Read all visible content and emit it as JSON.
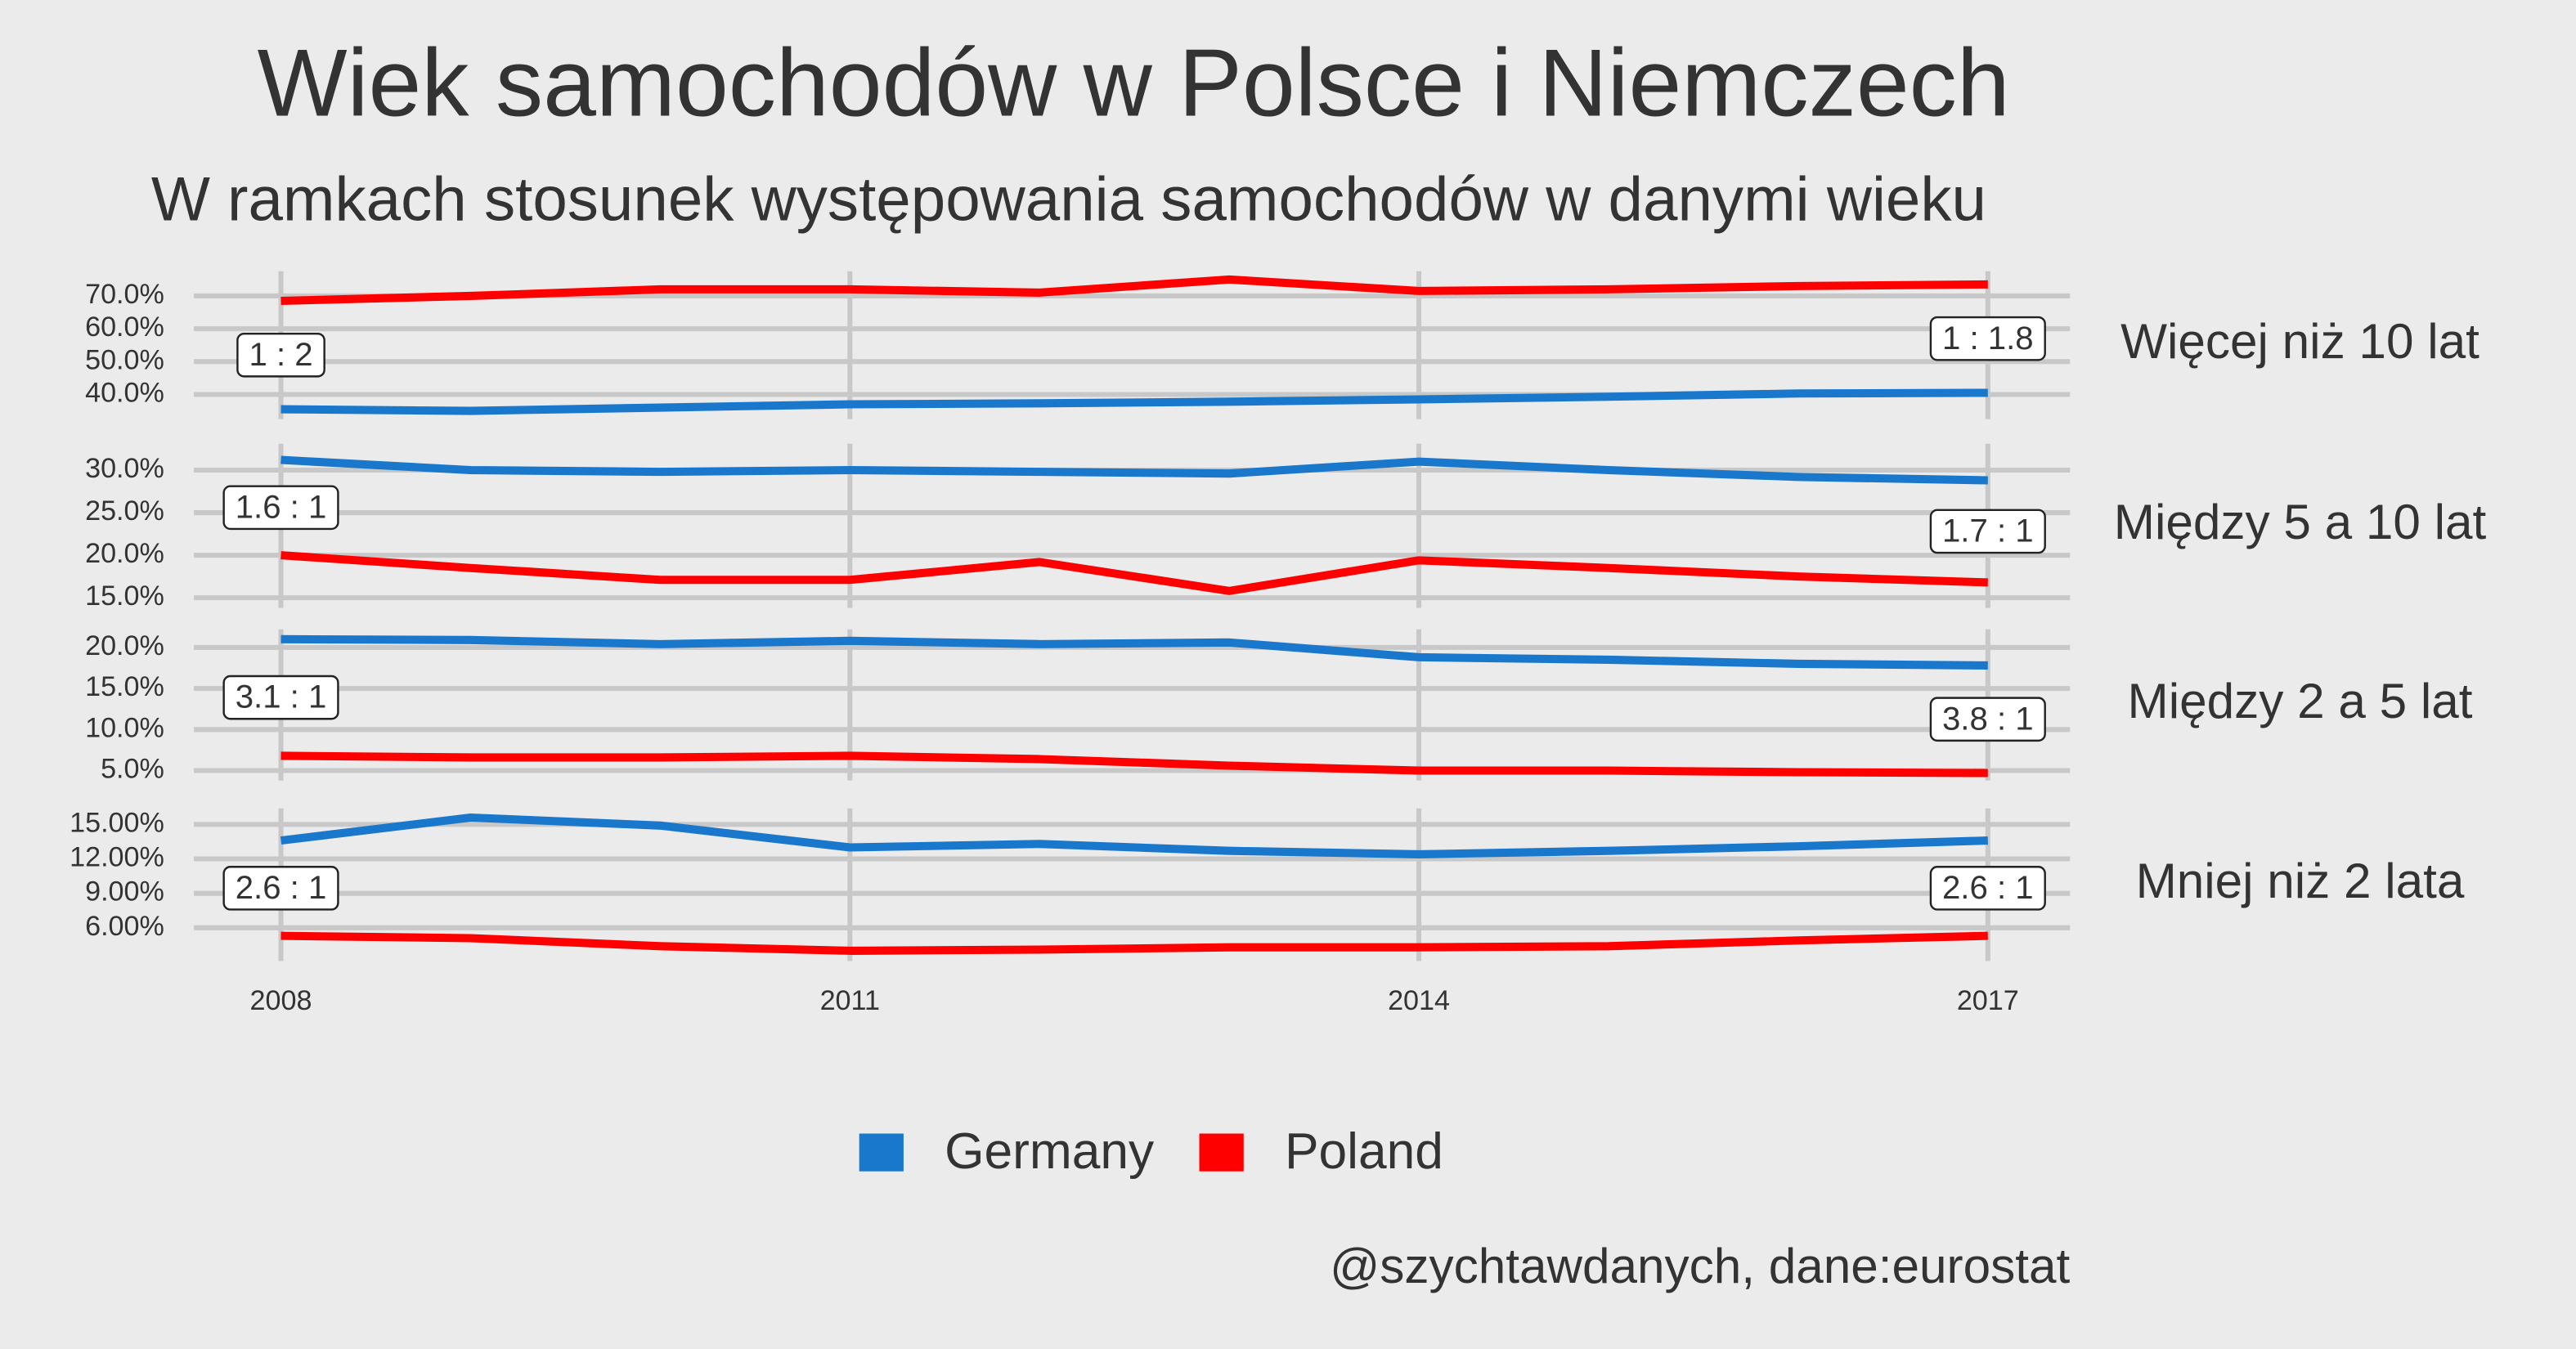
{
  "title": "Wiek samochodów w Polsce i Niemczech",
  "subtitle": "W ramkach stosunek występowania samochodów w danymi wieku",
  "caption": "@szychtawdanych, dane:eurostat",
  "chart_data": [
    {
      "type": "line",
      "facet_label": "Więcej niż 10 lat",
      "x": [
        2008,
        2009,
        2010,
        2011,
        2012,
        2013,
        2014,
        2015,
        2016,
        2017
      ],
      "xlim": [
        2008,
        2017
      ],
      "series": [
        {
          "name": "Germany",
          "color": "#1a78cc",
          "values": [
            35.5,
            35,
            36,
            37,
            37.3,
            37.8,
            38.5,
            39.3,
            40.3,
            40.5
          ]
        },
        {
          "name": "Poland",
          "color": "#ff0000",
          "values": [
            68.5,
            70,
            72,
            72,
            71,
            75,
            71.5,
            72,
            73,
            73.5
          ]
        }
      ],
      "ylim": [
        32.5,
        77.5
      ],
      "yticks": [
        {
          "value": 40,
          "label": "40.0%"
        },
        {
          "value": 50,
          "label": "50.0%"
        },
        {
          "value": 60,
          "label": "60.0%"
        },
        {
          "value": 70,
          "label": "70.0%"
        }
      ],
      "annotations": [
        {
          "x": 2008,
          "label": "1 : 2"
        },
        {
          "x": 2017,
          "label": "1 : 1.8"
        }
      ]
    },
    {
      "type": "line",
      "facet_label": "Między 5 a 10 lat",
      "x": [
        2008,
        2009,
        2010,
        2011,
        2012,
        2013,
        2014,
        2015,
        2016,
        2017
      ],
      "xlim": [
        2008,
        2017
      ],
      "series": [
        {
          "name": "Germany",
          "color": "#1a78cc",
          "values": [
            31.2,
            30,
            29.8,
            30,
            29.8,
            29.6,
            31,
            30,
            29.2,
            28.8
          ]
        },
        {
          "name": "Poland",
          "color": "#ff0000",
          "values": [
            20,
            18.5,
            17.1,
            17.1,
            19.2,
            15.8,
            19.4,
            18.5,
            17.5,
            16.8
          ]
        }
      ],
      "ylim": [
        13.8,
        33.1
      ],
      "yticks": [
        {
          "value": 15,
          "label": "15.0%"
        },
        {
          "value": 20,
          "label": "20.0%"
        },
        {
          "value": 25,
          "label": "25.0%"
        },
        {
          "value": 30,
          "label": "30.0%"
        }
      ],
      "annotations": [
        {
          "x": 2008,
          "label": "1.6 : 1"
        },
        {
          "x": 2017,
          "label": "1.7 : 1"
        }
      ]
    },
    {
      "type": "line",
      "facet_label": "Między 2 a 5 lat",
      "x": [
        2008,
        2009,
        2010,
        2011,
        2012,
        2013,
        2014,
        2015,
        2016,
        2017
      ],
      "xlim": [
        2008,
        2017
      ],
      "series": [
        {
          "name": "Germany",
          "color": "#1a78cc",
          "values": [
            21,
            20.9,
            20.4,
            20.8,
            20.4,
            20.6,
            18.8,
            18.5,
            18,
            17.8
          ]
        },
        {
          "name": "Poland",
          "color": "#ff0000",
          "values": [
            6.8,
            6.6,
            6.6,
            6.8,
            6.4,
            5.6,
            5,
            5,
            4.8,
            4.7
          ]
        }
      ],
      "ylim": [
        3.8,
        22.2
      ],
      "yticks": [
        {
          "value": 5,
          "label": "5.0%"
        },
        {
          "value": 10,
          "label": "10.0%"
        },
        {
          "value": 15,
          "label": "15.0%"
        },
        {
          "value": 20,
          "label": "20.0%"
        }
      ],
      "annotations": [
        {
          "x": 2008,
          "label": "3.1 : 1"
        },
        {
          "x": 2017,
          "label": "3.8 : 1"
        }
      ]
    },
    {
      "type": "line",
      "facet_label": "Mniej niż 2 lata",
      "x": [
        2008,
        2009,
        2010,
        2011,
        2012,
        2013,
        2014,
        2015,
        2016,
        2017
      ],
      "xlim": [
        2008,
        2017
      ],
      "xticks": [
        2008,
        2011,
        2014,
        2017
      ],
      "series": [
        {
          "name": "Germany",
          "color": "#1a78cc",
          "values": [
            13.6,
            15.6,
            14.9,
            13,
            13.3,
            12.7,
            12.4,
            12.7,
            13.1,
            13.6
          ]
        },
        {
          "name": "Poland",
          "color": "#ff0000",
          "values": [
            5.3,
            5.1,
            4.4,
            4,
            4.1,
            4.3,
            4.3,
            4.4,
            4.9,
            5.3
          ]
        }
      ],
      "ylim": [
        3.1,
        16.4
      ],
      "yticks": [
        {
          "value": 6,
          "label": "6.00%"
        },
        {
          "value": 9,
          "label": "9.00%"
        },
        {
          "value": 12,
          "label": "12.00%"
        },
        {
          "value": 15,
          "label": "15.00%"
        }
      ],
      "annotations": [
        {
          "x": 2008,
          "label": "2.6 : 1"
        },
        {
          "x": 2017,
          "label": "2.6 : 1"
        }
      ]
    }
  ]
}
